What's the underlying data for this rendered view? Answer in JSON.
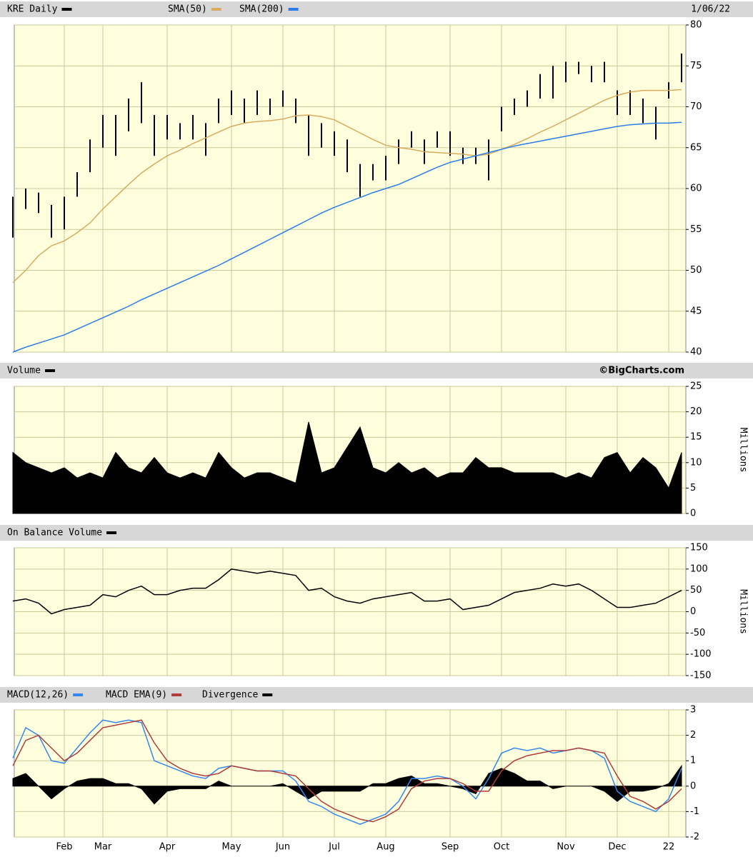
{
  "chart_data": [
    {
      "type": "stock",
      "date": "1/06/22",
      "ylim": [
        40,
        80
      ],
      "yticks": [
        40,
        45,
        50,
        55,
        60,
        65,
        70,
        75,
        80
      ],
      "grid": true,
      "series": [
        {
          "name": "KRE Daily",
          "type": "hl",
          "color": "#000000",
          "high": [
            59,
            60,
            59.5,
            58,
            59,
            62,
            66,
            69,
            69,
            71,
            73,
            69,
            69,
            68,
            69,
            68,
            71,
            72,
            71,
            72,
            71,
            72,
            71,
            69,
            68,
            67,
            66,
            63,
            63,
            64,
            66,
            67,
            66,
            67,
            67,
            65,
            65,
            66,
            70,
            71,
            72,
            74,
            75,
            75.5,
            75.5,
            75,
            75.5,
            72,
            72,
            71,
            70,
            73,
            76.5
          ],
          "low": [
            54,
            57.5,
            57,
            54,
            55,
            59,
            62,
            65,
            64,
            67,
            68,
            64,
            66,
            66,
            66,
            64,
            68,
            69,
            68,
            69,
            69,
            70,
            68,
            64,
            65,
            64,
            62,
            59,
            61,
            61,
            63,
            65,
            63,
            65,
            64,
            63,
            63,
            61,
            67,
            69,
            70,
            71,
            71,
            73,
            74,
            73,
            73,
            69,
            69,
            68,
            66,
            71,
            73
          ]
        },
        {
          "name": "SMA(50)",
          "type": "line",
          "color": "#d9aa60",
          "values": [
            48.5,
            50,
            51.8,
            53,
            53.6,
            54.6,
            55.8,
            57.5,
            59,
            60.5,
            61.9,
            63,
            64,
            64.7,
            65.5,
            66.2,
            66.9,
            67.6,
            68,
            68.2,
            68.3,
            68.5,
            68.9,
            69,
            68.8,
            68.4,
            67.6,
            66.8,
            66,
            65.3,
            65,
            64.8,
            64.5,
            64.4,
            64.3,
            64.2,
            64,
            64.2,
            64.8,
            65.4,
            66.1,
            66.9,
            67.6,
            68.4,
            69.2,
            70,
            70.8,
            71.4,
            71.8,
            72,
            72,
            72,
            72.1
          ]
        },
        {
          "name": "SMA(200)",
          "type": "line",
          "color": "#2a7de8",
          "values": [
            40,
            40.6,
            41.1,
            41.6,
            42.1,
            42.8,
            43.5,
            44.2,
            44.9,
            45.6,
            46.4,
            47.1,
            47.8,
            48.5,
            49.2,
            49.9,
            50.6,
            51.4,
            52.2,
            53,
            53.8,
            54.6,
            55.4,
            56.2,
            57,
            57.7,
            58.3,
            58.9,
            59.5,
            60,
            60.5,
            61.2,
            61.9,
            62.6,
            63.2,
            63.6,
            64,
            64.4,
            64.8,
            65.2,
            65.5,
            65.8,
            66.1,
            66.4,
            66.7,
            67,
            67.3,
            67.6,
            67.8,
            67.9,
            68,
            68,
            68.1
          ]
        }
      ]
    },
    {
      "type": "area",
      "note": "©BigCharts.com",
      "y_label": "Millions",
      "ylim": [
        0,
        25
      ],
      "yticks": [
        0,
        5,
        10,
        15,
        20,
        25
      ],
      "grid": true,
      "series": [
        {
          "name": "Volume",
          "type": "area",
          "color": "#000000",
          "values": [
            12,
            10,
            9,
            8,
            9,
            7,
            8,
            7,
            12,
            9,
            8,
            11,
            8,
            7,
            8,
            7,
            12,
            9,
            7,
            8,
            8,
            7,
            6,
            18,
            8,
            9,
            13,
            17,
            9,
            8,
            10,
            8,
            9,
            7,
            8,
            8,
            11,
            9,
            9,
            8,
            8,
            8,
            8,
            7,
            8,
            7,
            11,
            12,
            8,
            11,
            9,
            5,
            12
          ]
        }
      ]
    },
    {
      "type": "line",
      "y_label": "Millions",
      "ylim": [
        -150,
        150
      ],
      "yticks": [
        -150,
        -100,
        -50,
        0,
        50,
        100,
        150
      ],
      "grid": true,
      "series": [
        {
          "name": "On Balance Volume",
          "type": "line",
          "color": "#000000",
          "values": [
            25,
            30,
            20,
            -5,
            5,
            10,
            15,
            40,
            35,
            50,
            60,
            40,
            40,
            50,
            55,
            55,
            75,
            100,
            95,
            90,
            95,
            90,
            85,
            50,
            55,
            35,
            25,
            20,
            30,
            35,
            40,
            45,
            25,
            25,
            30,
            5,
            10,
            15,
            30,
            45,
            50,
            55,
            65,
            60,
            65,
            50,
            30,
            10,
            10,
            15,
            20,
            35,
            50
          ]
        }
      ]
    },
    {
      "type": "macd",
      "ylim": [
        -2,
        3
      ],
      "yticks": [
        -2,
        -1,
        0,
        1,
        2,
        3
      ],
      "grid": true,
      "categories": [
        null,
        null,
        null,
        null,
        "Feb",
        null,
        null,
        "Mar",
        null,
        null,
        null,
        null,
        "Apr",
        null,
        null,
        null,
        null,
        "May",
        null,
        null,
        null,
        "Jun",
        null,
        null,
        null,
        "Jul",
        null,
        null,
        null,
        "Aug",
        null,
        null,
        null,
        null,
        "Sep",
        null,
        null,
        null,
        "Oct",
        null,
        null,
        null,
        null,
        "Nov",
        null,
        null,
        null,
        "Dec",
        null,
        null,
        null,
        "22",
        null
      ],
      "series": [
        {
          "name": "MACD(12,26)",
          "type": "line",
          "color": "#3388ee",
          "values": [
            1.1,
            2.3,
            2,
            1,
            0.9,
            1.5,
            2.1,
            2.6,
            2.5,
            2.6,
            2.5,
            1,
            0.8,
            0.6,
            0.4,
            0.3,
            0.7,
            0.8,
            0.7,
            0.6,
            0.6,
            0.6,
            0.2,
            -0.6,
            -0.8,
            -1.1,
            -1.3,
            -1.5,
            -1.3,
            -1.1,
            -0.6,
            0.3,
            0.3,
            0.4,
            0.3,
            0,
            -0.5,
            0.3,
            1.3,
            1.5,
            1.4,
            1.5,
            1.3,
            1.4,
            1.5,
            1.4,
            1.1,
            -0.2,
            -0.6,
            -0.8,
            -1,
            -0.5,
            0.7
          ]
        },
        {
          "name": "MACD EMA(9)",
          "type": "line",
          "color": "#b23b3b",
          "values": [
            0.8,
            1.8,
            2,
            1.5,
            1,
            1.3,
            1.8,
            2.3,
            2.4,
            2.5,
            2.6,
            1.7,
            1,
            0.7,
            0.5,
            0.4,
            0.5,
            0.8,
            0.7,
            0.6,
            0.6,
            0.5,
            0.4,
            -0.1,
            -0.6,
            -0.9,
            -1.1,
            -1.3,
            -1.4,
            -1.2,
            -0.9,
            -0.1,
            0.2,
            0.3,
            0.3,
            0.1,
            -0.2,
            -0.2,
            0.6,
            1,
            1.2,
            1.3,
            1.4,
            1.4,
            1.5,
            1.4,
            1.3,
            0.4,
            -0.4,
            -0.6,
            -0.9,
            -0.6,
            -0.1
          ]
        },
        {
          "name": "Divergence",
          "type": "area",
          "color": "#000000",
          "values": [
            0.3,
            0.5,
            0,
            -0.5,
            -0.1,
            0.2,
            0.3,
            0.3,
            0.1,
            0.1,
            -0.1,
            -0.7,
            -0.2,
            -0.1,
            -0.1,
            -0.1,
            0.2,
            0,
            0,
            0,
            0,
            0.1,
            -0.2,
            -0.5,
            -0.2,
            -0.2,
            -0.2,
            -0.2,
            0.1,
            0.1,
            0.3,
            0.4,
            0.1,
            0.1,
            0,
            -0.1,
            -0.3,
            0.5,
            0.7,
            0.5,
            0.2,
            0.2,
            -0.1,
            0,
            0,
            0,
            -0.2,
            -0.6,
            -0.2,
            -0.2,
            -0.1,
            0.1,
            0.8
          ]
        }
      ]
    }
  ]
}
